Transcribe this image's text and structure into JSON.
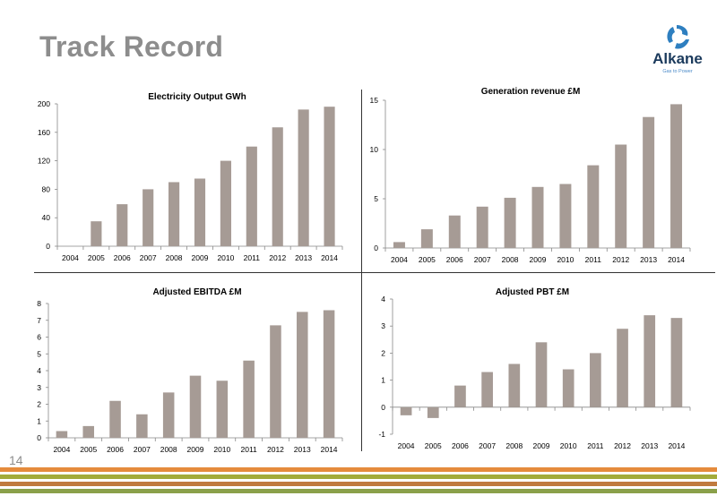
{
  "page": {
    "title": "Track Record",
    "page_number": "14",
    "logo_name": "Alkane",
    "logo_tagline": "Gas to Power",
    "colors": {
      "bar": "#a69b95",
      "title": "#8d8d8d",
      "stripe_orange": "#e58b3c",
      "stripe_olive": "#a3ab3a",
      "stripe_brown": "#c07a3e",
      "stripe_green": "#8aa04a",
      "logo_blue": "#2e7fc0"
    }
  },
  "chart_data": [
    {
      "type": "bar",
      "title": "Electricity Output GWh",
      "categories": [
        "2004",
        "2005",
        "2006",
        "2007",
        "2008",
        "2009",
        "2010",
        "2011",
        "2012",
        "2013",
        "2014"
      ],
      "values": [
        0,
        35,
        59,
        80,
        90,
        95,
        120,
        140,
        167,
        192,
        196
      ],
      "ylim": [
        0,
        200
      ],
      "yticks": [
        "0",
        "40",
        "80",
        "120",
        "160",
        "200"
      ]
    },
    {
      "type": "bar",
      "title": "Generation revenue £M",
      "categories": [
        "2004",
        "2005",
        "2006",
        "2007",
        "2008",
        "2009",
        "2010",
        "2011",
        "2012",
        "2013",
        "2014"
      ],
      "values": [
        0.6,
        1.9,
        3.3,
        4.2,
        5.1,
        6.2,
        6.5,
        8.4,
        10.5,
        13.3,
        14.6
      ],
      "ylim": [
        0,
        15
      ],
      "yticks": [
        "0",
        "5",
        "10",
        "15"
      ]
    },
    {
      "type": "bar",
      "title": "Adjusted EBITDA £M",
      "categories": [
        "2004",
        "2005",
        "2006",
        "2007",
        "2008",
        "2009",
        "2010",
        "2011",
        "2012",
        "2013",
        "2014"
      ],
      "values": [
        0.4,
        0.7,
        2.2,
        1.4,
        2.7,
        3.7,
        3.4,
        4.6,
        6.7,
        7.5,
        7.6
      ],
      "ylim": [
        0,
        8
      ],
      "yticks": [
        "0",
        "1",
        "2",
        "3",
        "4",
        "5",
        "6",
        "7",
        "8"
      ]
    },
    {
      "type": "bar",
      "title": "Adjusted PBT £M",
      "categories": [
        "2004",
        "2005",
        "2006",
        "2007",
        "2008",
        "2009",
        "2010",
        "2011",
        "2012",
        "2013",
        "2014"
      ],
      "values": [
        -0.3,
        -0.4,
        0.8,
        1.3,
        1.6,
        2.4,
        1.4,
        2.0,
        2.9,
        3.4,
        3.3
      ],
      "ylim": [
        -1,
        4
      ],
      "yticks": [
        "-1",
        "0",
        "1",
        "2",
        "3",
        "4"
      ]
    }
  ]
}
